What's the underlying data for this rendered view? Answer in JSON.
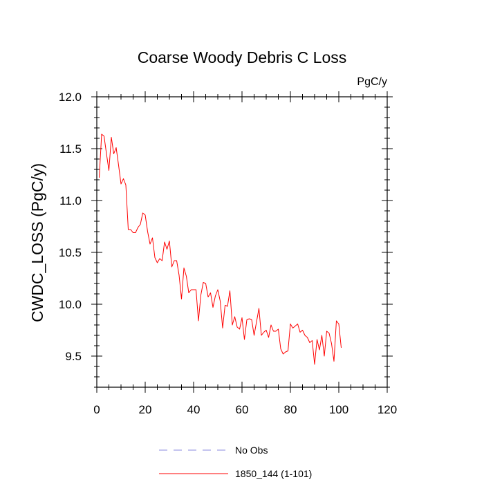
{
  "chart_data": {
    "type": "line",
    "title": "Coarse Woody Debris C Loss",
    "units_label": "PgC/y",
    "xlabel": "",
    "ylabel": "CWDC_LOSS  (PgC/y)",
    "xlim": [
      0,
      120
    ],
    "ylim": [
      9.2,
      12.0
    ],
    "x_ticks": [
      0,
      20,
      40,
      60,
      80,
      100,
      120
    ],
    "x_tick_labels": [
      "0",
      "20",
      "40",
      "60",
      "80",
      "100",
      "120"
    ],
    "y_ticks": [
      9.5,
      10.0,
      10.5,
      11.0,
      11.5,
      12.0
    ],
    "y_tick_labels": [
      "9.5",
      "10.0",
      "10.5",
      "11.0",
      "11.5",
      "12.0"
    ],
    "grid": false,
    "legend": [
      {
        "label": "No Obs",
        "style": "dashed",
        "color": "#8a8adf"
      },
      {
        "label": "1850_144 (1-101)",
        "style": "solid",
        "color": "#ff0000"
      }
    ],
    "series": [
      {
        "name": "1850_144 (1-101)",
        "color": "#ff0000",
        "x": [
          1,
          2,
          3,
          4,
          5,
          6,
          7,
          8,
          9,
          10,
          11,
          12,
          13,
          14,
          15,
          16,
          17,
          18,
          19,
          20,
          21,
          22,
          23,
          24,
          25,
          26,
          27,
          28,
          29,
          30,
          31,
          32,
          33,
          34,
          35,
          36,
          37,
          38,
          39,
          40,
          41,
          42,
          43,
          44,
          45,
          46,
          47,
          48,
          49,
          50,
          51,
          52,
          53,
          54,
          55,
          56,
          57,
          58,
          59,
          60,
          61,
          62,
          63,
          64,
          65,
          66,
          67,
          68,
          69,
          70,
          71,
          72,
          73,
          74,
          75,
          76,
          77,
          78,
          79,
          80,
          81,
          82,
          83,
          84,
          85,
          86,
          87,
          88,
          89,
          90,
          91,
          92,
          93,
          94,
          95,
          96,
          97,
          98,
          99,
          100,
          101
        ],
        "values": [
          11.22,
          11.64,
          11.62,
          11.45,
          11.29,
          11.61,
          11.45,
          11.51,
          11.34,
          11.16,
          11.21,
          11.15,
          10.72,
          10.72,
          10.69,
          10.69,
          10.74,
          10.77,
          10.88,
          10.86,
          10.7,
          10.58,
          10.64,
          10.45,
          10.4,
          10.44,
          10.42,
          10.6,
          10.53,
          10.61,
          10.36,
          10.42,
          10.42,
          10.28,
          10.05,
          10.35,
          10.27,
          10.11,
          10.14,
          10.14,
          10.14,
          9.84,
          10.09,
          10.21,
          10.2,
          10.07,
          10.11,
          9.97,
          10.08,
          10.14,
          10.03,
          9.77,
          9.99,
          9.98,
          10.13,
          9.8,
          9.88,
          9.78,
          9.76,
          9.87,
          9.66,
          9.85,
          9.86,
          9.85,
          9.7,
          9.83,
          9.96,
          9.7,
          9.73,
          9.75,
          9.68,
          9.8,
          9.74,
          9.74,
          9.76,
          9.57,
          9.52,
          9.54,
          9.55,
          9.81,
          9.77,
          9.79,
          9.81,
          9.73,
          9.75,
          9.7,
          9.68,
          9.63,
          9.65,
          9.42,
          9.66,
          9.56,
          9.7,
          9.5,
          9.74,
          9.72,
          9.62,
          9.45,
          9.84,
          9.81,
          9.58
        ]
      }
    ]
  }
}
